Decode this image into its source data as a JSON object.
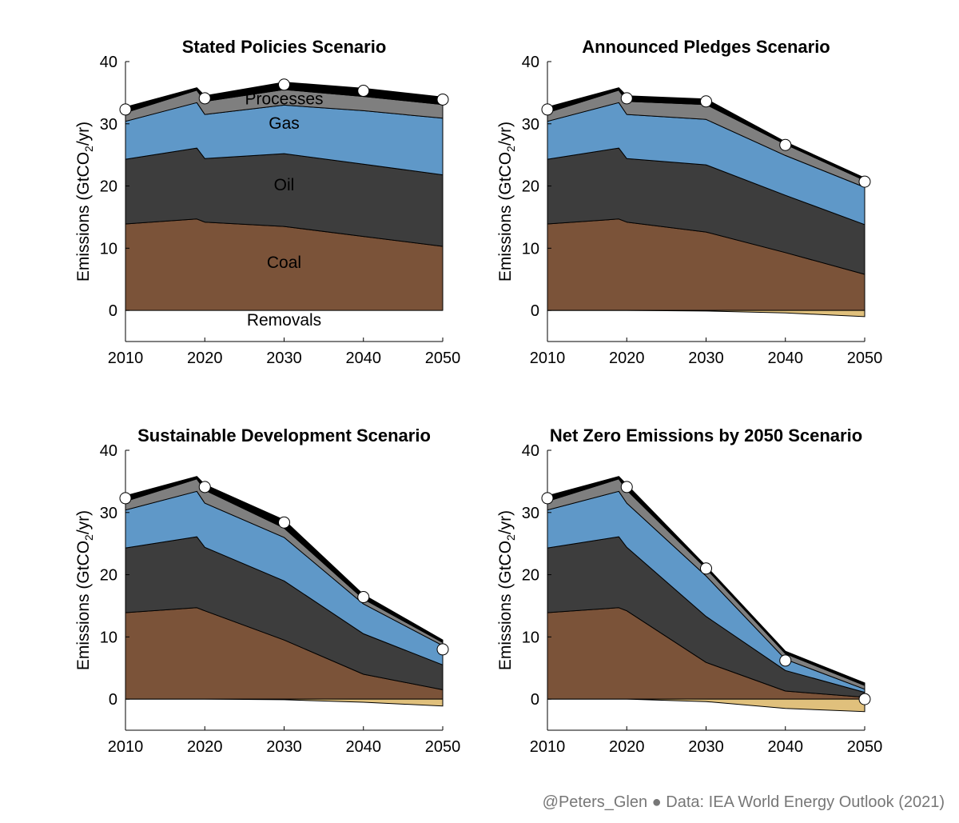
{
  "credit": "@Peters_Glen ● Data: IEA World Energy Outlook (2021)",
  "colors": {
    "coal": "#7b5339",
    "oil": "#3d3d3d",
    "gas": "#5f98c8",
    "processes": "#7f7f7f",
    "removals": "#e0c07c",
    "total_band": "#000000",
    "marker_fill": "#ffffff"
  },
  "chart_data": [
    {
      "type": "area",
      "title": "Stated Policies Scenario",
      "xlabel": "",
      "ylabel": "Emissions (GtCO2/yr)",
      "xlim": [
        2010,
        2050
      ],
      "ylim": [
        -5,
        40
      ],
      "xticks": [
        2010,
        2020,
        2030,
        2040,
        2050
      ],
      "yticks": [
        0,
        10,
        20,
        30,
        40
      ],
      "x": [
        2010,
        2019,
        2020,
        2030,
        2040,
        2050
      ],
      "series": [
        {
          "name": "Coal",
          "key": "coal",
          "values": [
            13.9,
            14.7,
            14.2,
            13.5,
            11.9,
            10.3
          ]
        },
        {
          "name": "Oil",
          "key": "oil",
          "values": [
            10.4,
            11.4,
            10.2,
            11.7,
            11.6,
            11.5
          ]
        },
        {
          "name": "Gas",
          "key": "gas",
          "values": [
            6.1,
            7.3,
            7.1,
            7.8,
            8.6,
            9.1
          ]
        },
        {
          "name": "Processes",
          "key": "processes",
          "values": [
            1.4,
            2.0,
            2.1,
            2.5,
            2.3,
            2.2
          ]
        },
        {
          "name": "Removals",
          "key": "removals",
          "values": [
            0,
            0,
            0,
            0,
            0,
            0
          ]
        }
      ],
      "total_markers": {
        "x": [
          2010,
          2020,
          2030,
          2040,
          2050
        ],
        "values": [
          32.3,
          34.1,
          36.3,
          35.3,
          33.9
        ]
      },
      "labels": [
        {
          "text": "Processes",
          "x": 2030,
          "y": 33.1
        },
        {
          "text": "Gas",
          "x": 2030,
          "y": 29.2
        },
        {
          "text": "Oil",
          "x": 2030,
          "y": 19.3
        },
        {
          "text": "Coal",
          "x": 2030,
          "y": 6.8
        },
        {
          "text": "Removals",
          "x": 2030,
          "y": -2.4
        }
      ]
    },
    {
      "type": "area",
      "title": "Announced Pledges Scenario",
      "xlabel": "",
      "ylabel": "Emissions (GtCO2/yr)",
      "xlim": [
        2010,
        2050
      ],
      "ylim": [
        -5,
        40
      ],
      "xticks": [
        2010,
        2020,
        2030,
        2040,
        2050
      ],
      "yticks": [
        0,
        10,
        20,
        30,
        40
      ],
      "x": [
        2010,
        2019,
        2020,
        2030,
        2040,
        2050
      ],
      "series": [
        {
          "name": "Coal",
          "key": "coal",
          "values": [
            13.9,
            14.7,
            14.2,
            12.6,
            9.3,
            5.8
          ]
        },
        {
          "name": "Oil",
          "key": "oil",
          "values": [
            10.4,
            11.4,
            10.2,
            10.8,
            9.2,
            8.0
          ]
        },
        {
          "name": "Gas",
          "key": "gas",
          "values": [
            6.1,
            7.3,
            7.1,
            7.3,
            6.4,
            6.0
          ]
        },
        {
          "name": "Processes",
          "key": "processes",
          "values": [
            1.4,
            2.0,
            2.1,
            2.4,
            1.8,
            1.1
          ]
        },
        {
          "name": "Removals",
          "key": "removals",
          "values": [
            0,
            0,
            0,
            -0.1,
            -0.4,
            -1.0
          ]
        }
      ],
      "total_markers": {
        "x": [
          2010,
          2020,
          2030,
          2040,
          2050
        ],
        "values": [
          32.3,
          34.1,
          33.6,
          26.6,
          20.7
        ]
      },
      "labels": []
    },
    {
      "type": "area",
      "title": "Sustainable Development Scenario",
      "xlabel": "",
      "ylabel": "Emissions (GtCO2/yr)",
      "xlim": [
        2010,
        2050
      ],
      "ylim": [
        -5,
        40
      ],
      "xticks": [
        2010,
        2020,
        2030,
        2040,
        2050
      ],
      "yticks": [
        0,
        10,
        20,
        30,
        40
      ],
      "x": [
        2010,
        2019,
        2020,
        2030,
        2040,
        2050
      ],
      "series": [
        {
          "name": "Coal",
          "key": "coal",
          "values": [
            13.9,
            14.7,
            14.2,
            9.5,
            4.0,
            1.5
          ]
        },
        {
          "name": "Oil",
          "key": "oil",
          "values": [
            10.4,
            11.4,
            10.2,
            9.5,
            6.5,
            4.0
          ]
        },
        {
          "name": "Gas",
          "key": "gas",
          "values": [
            6.1,
            7.3,
            7.1,
            7.0,
            4.8,
            3.1
          ]
        },
        {
          "name": "Processes",
          "key": "processes",
          "values": [
            1.4,
            2.0,
            2.1,
            1.5,
            0.8,
            0.5
          ]
        },
        {
          "name": "Removals",
          "key": "removals",
          "values": [
            0,
            0,
            0,
            -0.1,
            -0.5,
            -1.1
          ]
        }
      ],
      "total_markers": {
        "x": [
          2010,
          2020,
          2030,
          2040,
          2050
        ],
        "values": [
          32.3,
          34.1,
          28.4,
          16.4,
          8.0
        ]
      },
      "labels": []
    },
    {
      "type": "area",
      "title": "Net Zero Emissions by 2050 Scenario",
      "xlabel": "",
      "ylabel": "Emissions (GtCO2/yr)",
      "xlim": [
        2010,
        2050
      ],
      "ylim": [
        -5,
        40
      ],
      "xticks": [
        2010,
        2020,
        2030,
        2040,
        2050
      ],
      "yticks": [
        0,
        10,
        20,
        30,
        40
      ],
      "x": [
        2010,
        2019,
        2020,
        2030,
        2040,
        2050
      ],
      "series": [
        {
          "name": "Coal",
          "key": "coal",
          "values": [
            13.9,
            14.7,
            14.2,
            5.9,
            1.3,
            0.3
          ]
        },
        {
          "name": "Oil",
          "key": "oil",
          "values": [
            10.4,
            11.4,
            10.2,
            7.4,
            3.3,
            0.8
          ]
        },
        {
          "name": "Gas",
          "key": "gas",
          "values": [
            6.1,
            7.3,
            7.1,
            6.5,
            1.8,
            0.5
          ]
        },
        {
          "name": "Processes",
          "key": "processes",
          "values": [
            1.4,
            2.0,
            2.1,
            1.2,
            0.9,
            0.6
          ]
        },
        {
          "name": "Removals",
          "key": "removals",
          "values": [
            0,
            0,
            0,
            -0.4,
            -1.5,
            -2.0
          ]
        }
      ],
      "total_markers": {
        "x": [
          2010,
          2020,
          2030,
          2040,
          2050
        ],
        "values": [
          32.3,
          34.1,
          21.0,
          6.2,
          0.0
        ]
      },
      "labels": []
    }
  ]
}
